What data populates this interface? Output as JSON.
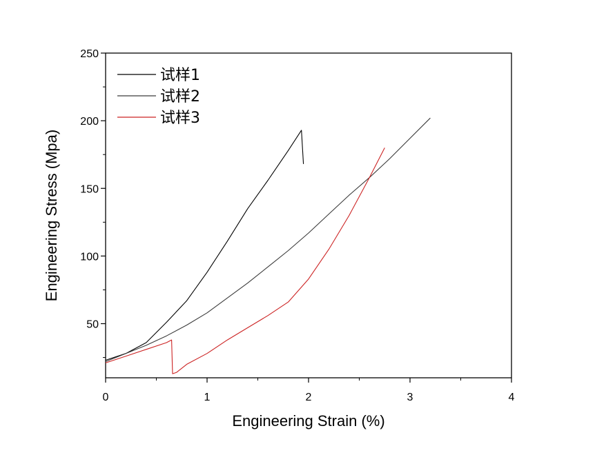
{
  "chart_data": {
    "type": "line",
    "xlabel": "Engineering Strain (%)",
    "ylabel": "Engineering Stress (Mpa)",
    "xlim": [
      0,
      4
    ],
    "ylim": [
      10,
      250
    ],
    "x_ticks": [
      0,
      1,
      2,
      3,
      4
    ],
    "y_ticks": [
      50,
      100,
      150,
      200,
      250
    ],
    "grid": false,
    "legend_position": "top-left",
    "series": [
      {
        "name": "试样1",
        "color": "#000000",
        "x": [
          0,
          0.2,
          0.4,
          0.6,
          0.8,
          1.0,
          1.2,
          1.4,
          1.6,
          1.8,
          1.93,
          1.94,
          1.95
        ],
        "y": [
          23,
          28,
          36,
          51,
          67,
          88,
          111,
          135,
          156,
          178,
          193,
          180,
          168
        ]
      },
      {
        "name": "试样2",
        "color": "#3a3a3a",
        "x": [
          0,
          0.2,
          0.4,
          0.6,
          0.8,
          1.0,
          1.2,
          1.4,
          1.6,
          1.8,
          2.0,
          2.2,
          2.4,
          2.6,
          2.8,
          3.0,
          3.2
        ],
        "y": [
          22,
          28,
          34,
          41,
          49,
          58,
          69,
          80,
          92,
          104,
          117,
          131,
          145,
          158,
          172,
          187,
          202
        ]
      },
      {
        "name": "试样3",
        "color": "#cc2222",
        "x": [
          0,
          0.2,
          0.4,
          0.6,
          0.65,
          0.66,
          0.7,
          0.8,
          1.0,
          1.2,
          1.4,
          1.6,
          1.8,
          2.0,
          2.2,
          2.4,
          2.6,
          2.75
        ],
        "y": [
          21,
          26,
          31,
          36,
          38,
          13,
          14,
          20,
          28,
          38,
          47,
          56,
          66,
          83,
          105,
          130,
          158,
          180
        ]
      }
    ]
  }
}
